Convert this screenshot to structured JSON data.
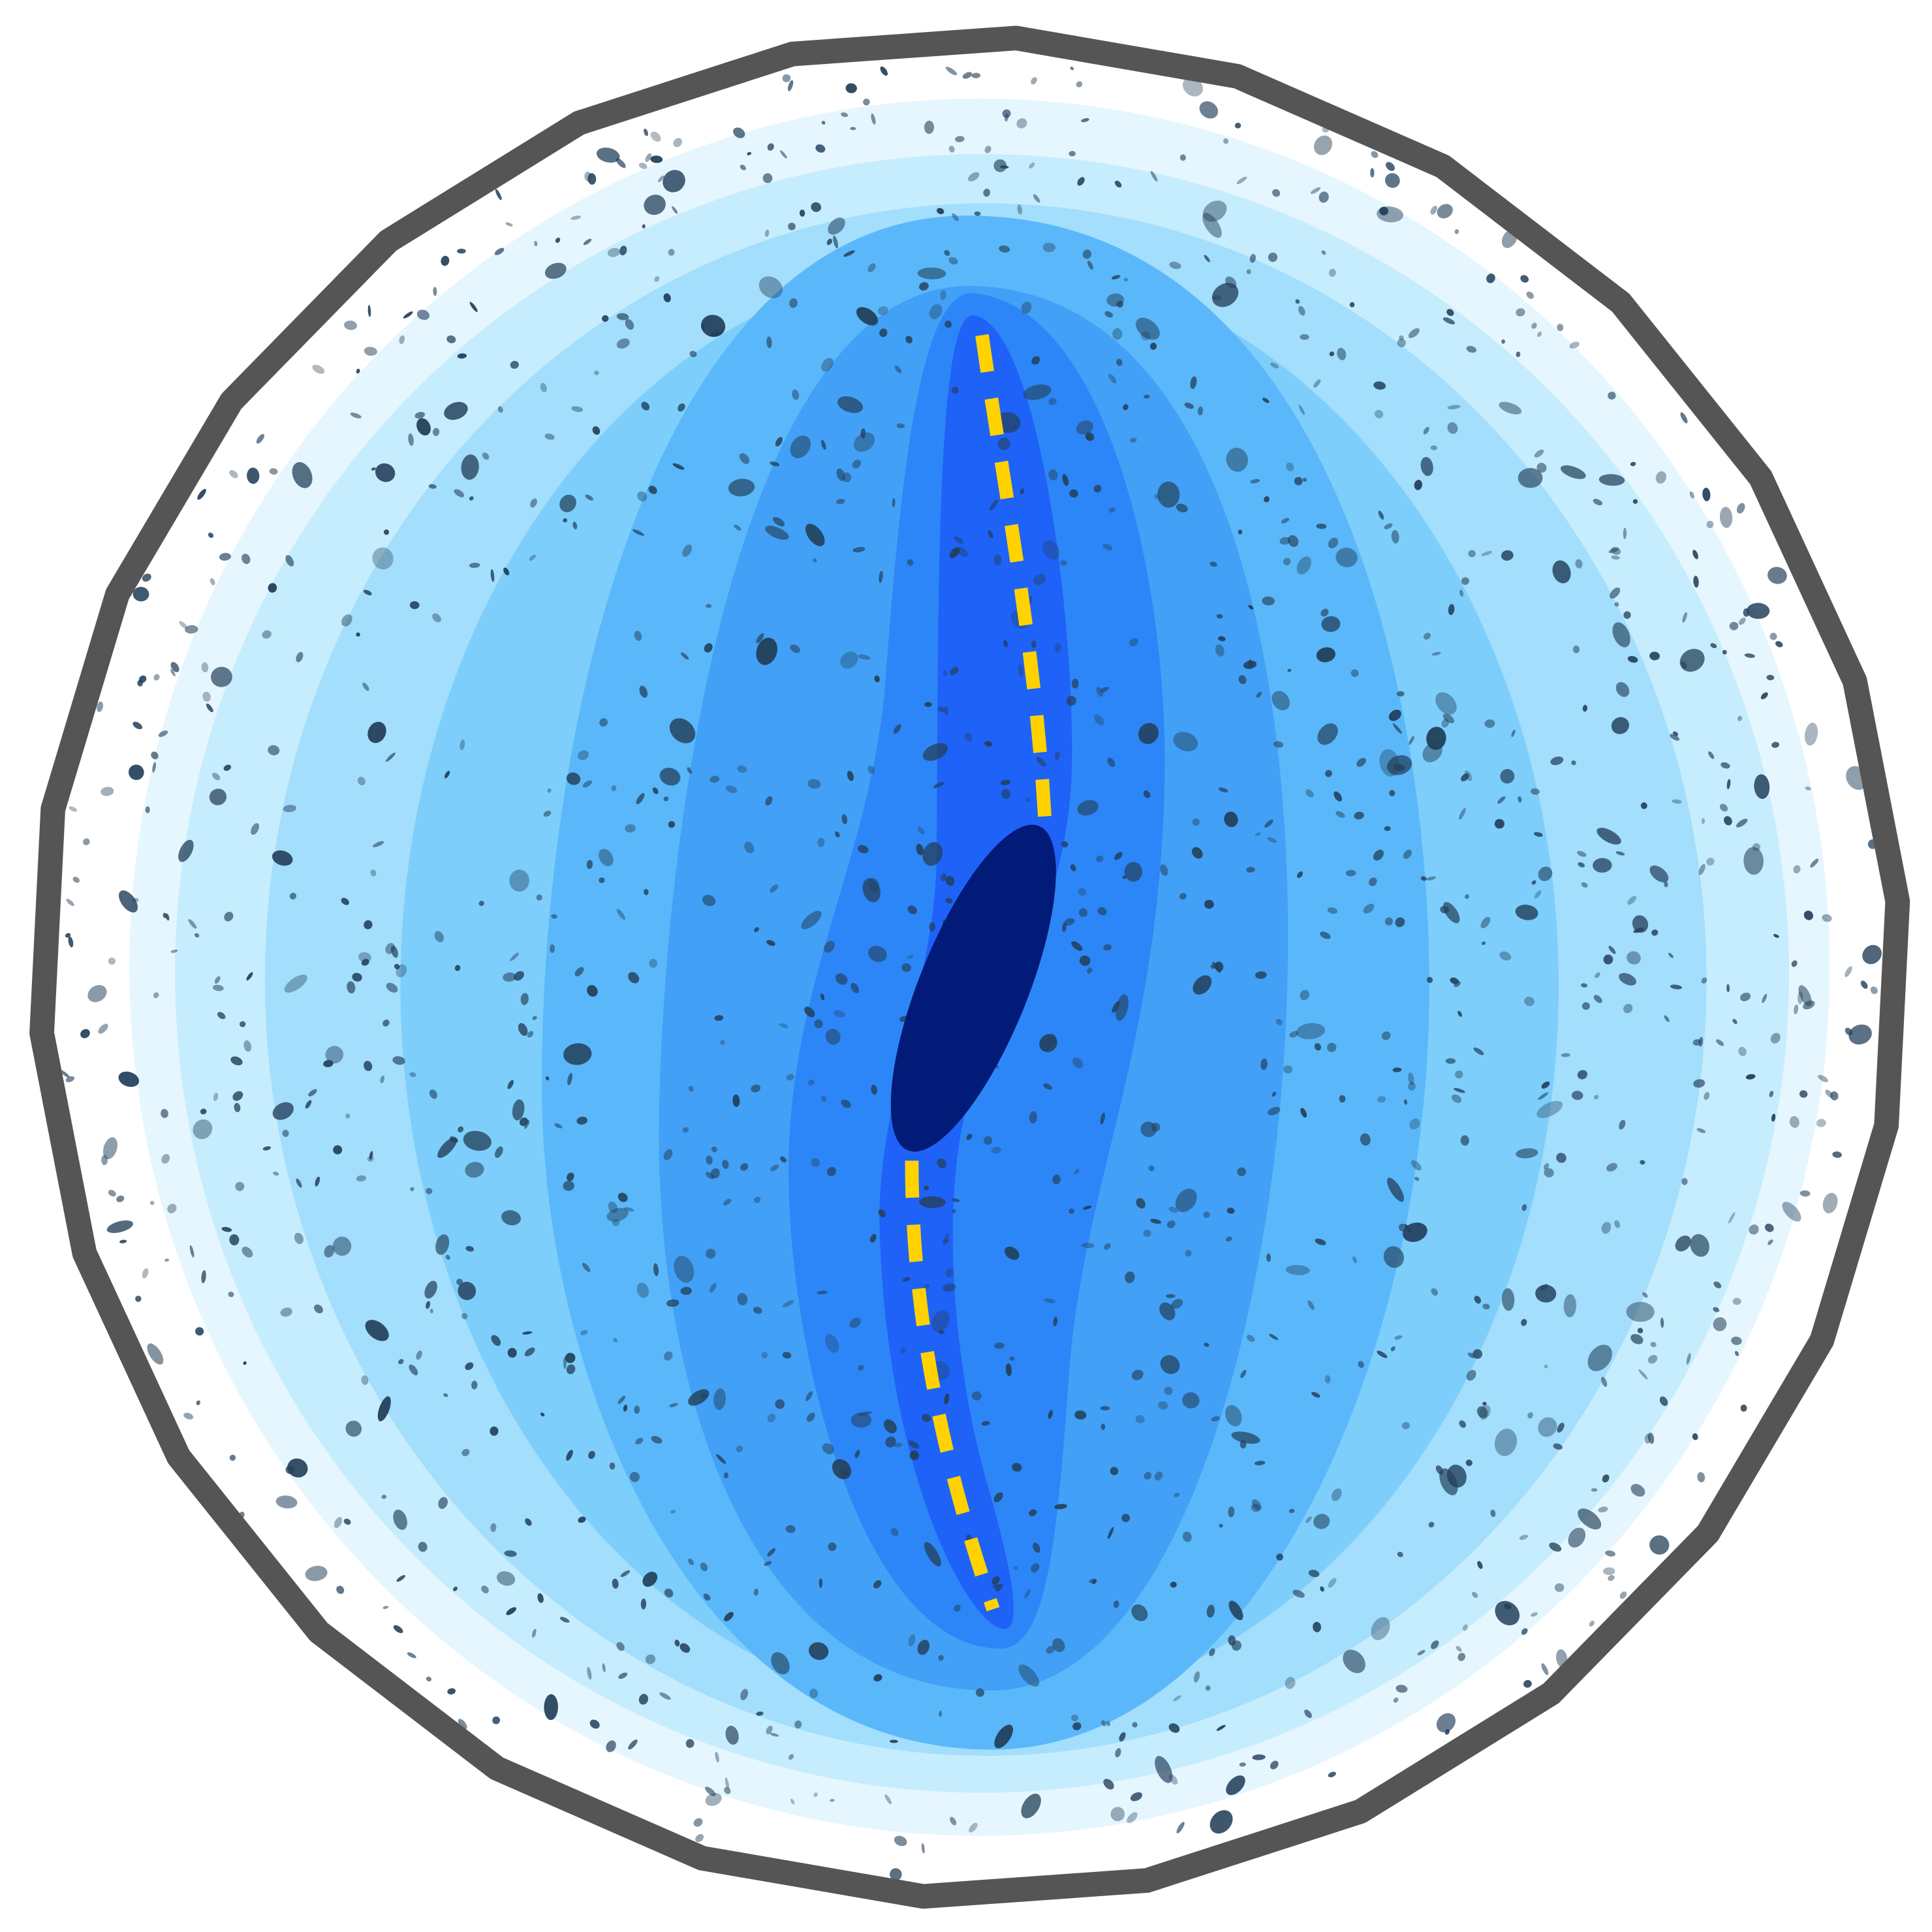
{
  "colors": {
    "background": "#ffffff",
    "border": "#555555",
    "levels": [
      "#e6f6fe",
      "#c6edfd",
      "#a3defc",
      "#7dcefb",
      "#5ab8fa",
      "#42a0f6",
      "#2d86f7",
      "#1f62f8"
    ],
    "core": "#031b78",
    "path_line": "#ffd200",
    "speckle": "#23405a"
  },
  "elements": {
    "core_shape": "ellipse",
    "path_line_style": "dashed",
    "speckle_count": 1400
  }
}
